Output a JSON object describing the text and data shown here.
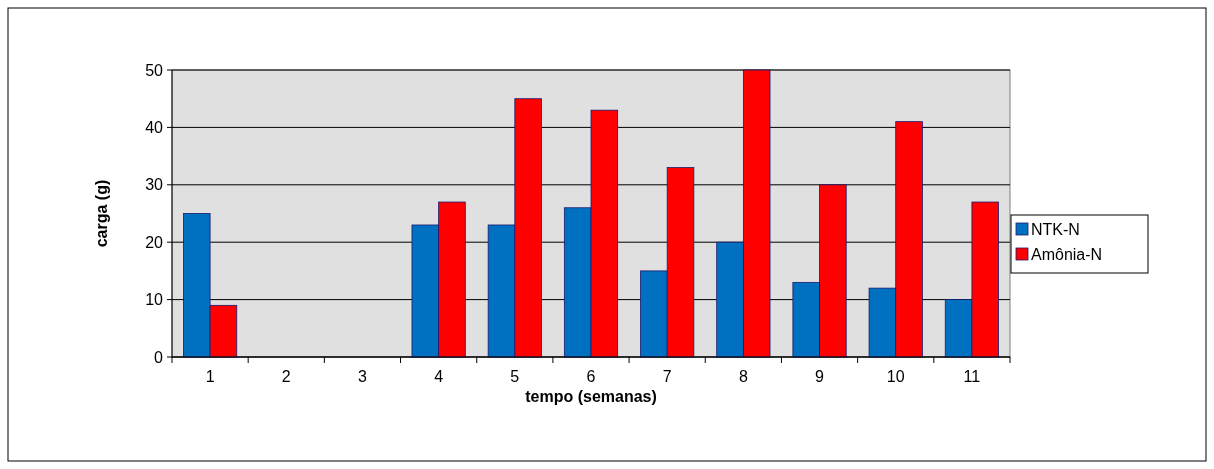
{
  "chart_data": {
    "type": "bar",
    "xlabel": "tempo (semanas)",
    "ylabel": "carga (g)",
    "categories": [
      "1",
      "2",
      "3",
      "4",
      "5",
      "6",
      "7",
      "8",
      "9",
      "10",
      "11"
    ],
    "series": [
      {
        "name": "NTK-N",
        "color": "#0070c0",
        "values": [
          25,
          null,
          null,
          23,
          23,
          26,
          15,
          20,
          13,
          12,
          10
        ]
      },
      {
        "name": "Amônia-N",
        "color": "#ff0000",
        "values": [
          9,
          null,
          null,
          27,
          45,
          43,
          33,
          50,
          30,
          41,
          27
        ]
      }
    ],
    "ylim": [
      0,
      50
    ],
    "yticks": [
      0,
      10,
      20,
      30,
      40,
      50
    ],
    "grid": "y",
    "legend": "right"
  }
}
